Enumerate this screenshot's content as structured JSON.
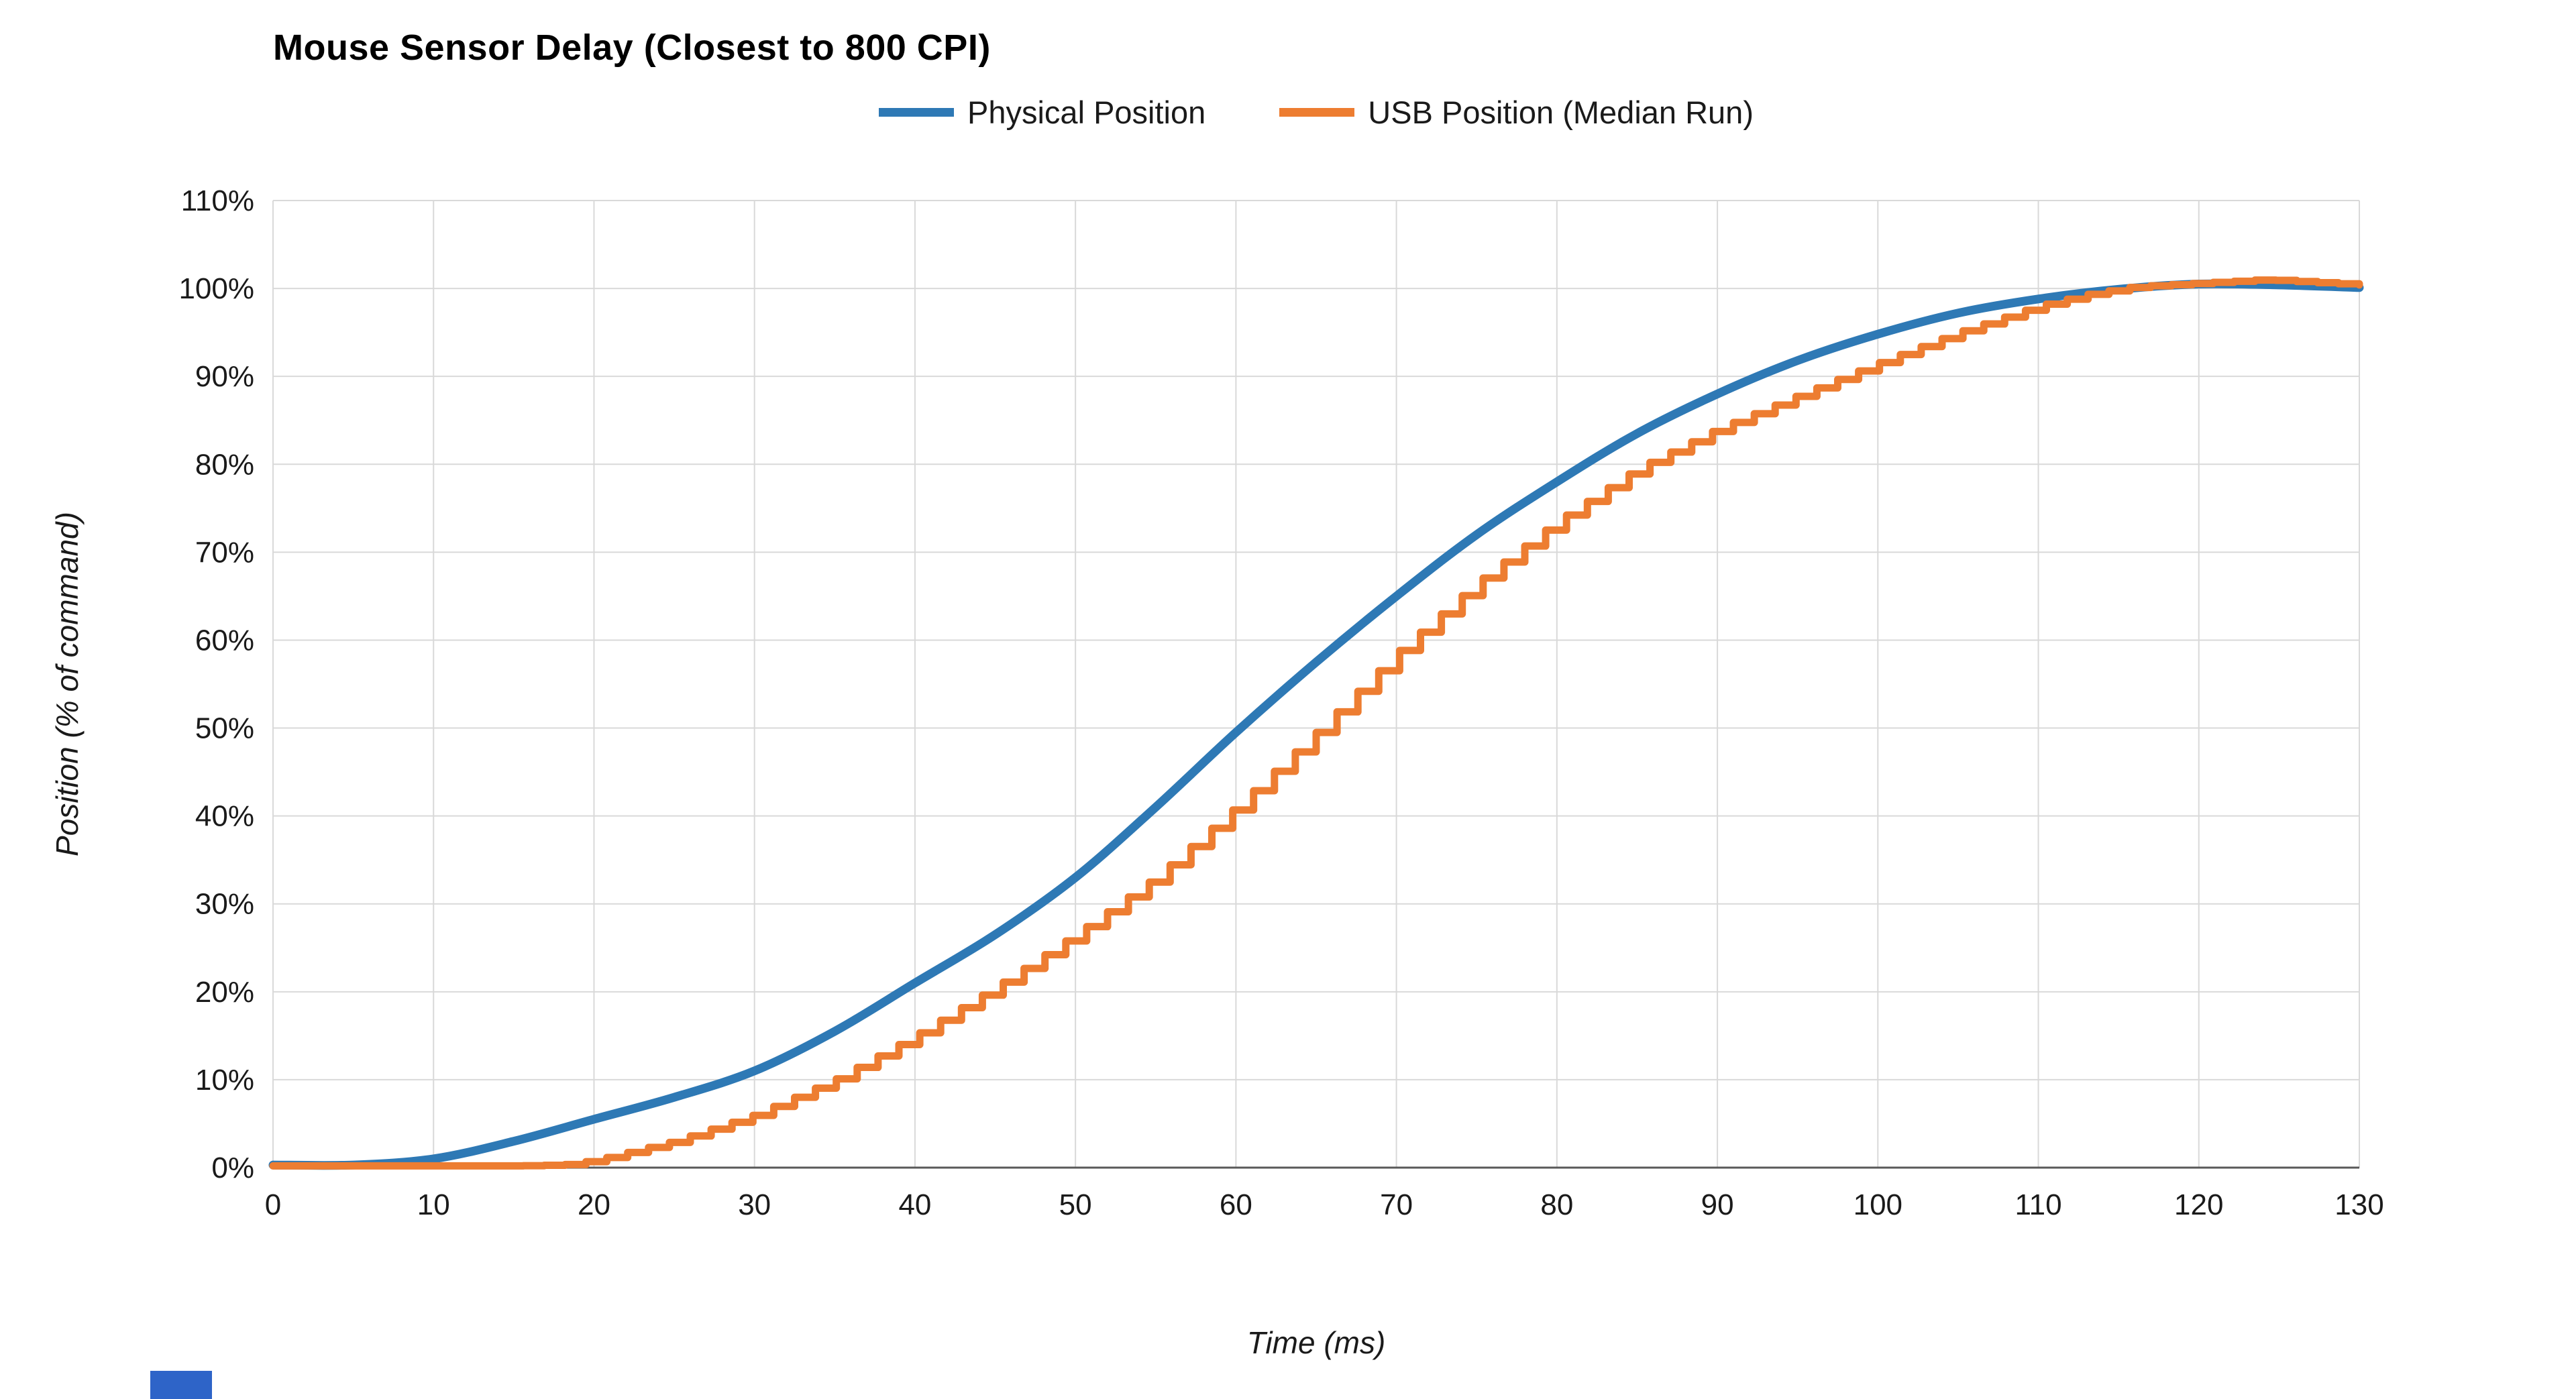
{
  "chart_data": {
    "type": "line",
    "title": "Mouse Sensor Delay (Closest to 800 CPI)",
    "xlabel": "Time (ms)",
    "ylabel": "Position (% of command)",
    "xlim": [
      0,
      130
    ],
    "ylim": [
      0,
      110
    ],
    "xticks": [
      0,
      10,
      20,
      30,
      40,
      50,
      60,
      70,
      80,
      90,
      100,
      110,
      120,
      130
    ],
    "yticks": [
      0,
      10,
      20,
      30,
      40,
      50,
      60,
      70,
      80,
      90,
      100,
      110
    ],
    "ytick_suffix": "%",
    "grid": true,
    "legend_position": "top-center",
    "series": [
      {
        "name": "Physical Position",
        "color": "#2E79B5",
        "style": "smooth",
        "stroke_width": 13,
        "x": [
          0,
          5,
          10,
          15,
          20,
          25,
          30,
          35,
          40,
          45,
          50,
          55,
          60,
          65,
          70,
          75,
          80,
          85,
          90,
          95,
          100,
          105,
          110,
          115,
          120,
          125,
          130
        ],
        "y": [
          0.3,
          0.3,
          1,
          3,
          5.5,
          8,
          11,
          15.5,
          21,
          26.5,
          33,
          41,
          49.5,
          57.5,
          65,
          72,
          78,
          83.5,
          88,
          91.8,
          94.8,
          97.2,
          98.8,
          99.9,
          100.5,
          100.4,
          100.1
        ]
      },
      {
        "name": "USB Position (Median Run)",
        "color": "#ED7D31",
        "style": "step",
        "step_ms": 1.3,
        "stroke_width": 11,
        "x": [
          0,
          5,
          10,
          15,
          18,
          20,
          25,
          30,
          35,
          40,
          45,
          50,
          55,
          60,
          65,
          70,
          75,
          80,
          85,
          90,
          95,
          100,
          105,
          110,
          113,
          116,
          120,
          124,
          127,
          130
        ],
        "y": [
          0.2,
          0.2,
          0.2,
          0.2,
          0.3,
          0.8,
          3,
          6,
          10,
          15,
          20.5,
          26.5,
          33,
          41,
          49.5,
          58.5,
          66.5,
          73.5,
          79.5,
          84,
          87.8,
          91.5,
          95,
          98,
          99.3,
          100.2,
          100.6,
          101,
          100.7,
          100.4
        ]
      }
    ],
    "colors": {
      "grid": "#d9d9d9",
      "axis_bottom": "#595959",
      "text": "#1a1a1a"
    }
  },
  "decor": {
    "taskbar_fragment_color": "#2e64c8"
  }
}
